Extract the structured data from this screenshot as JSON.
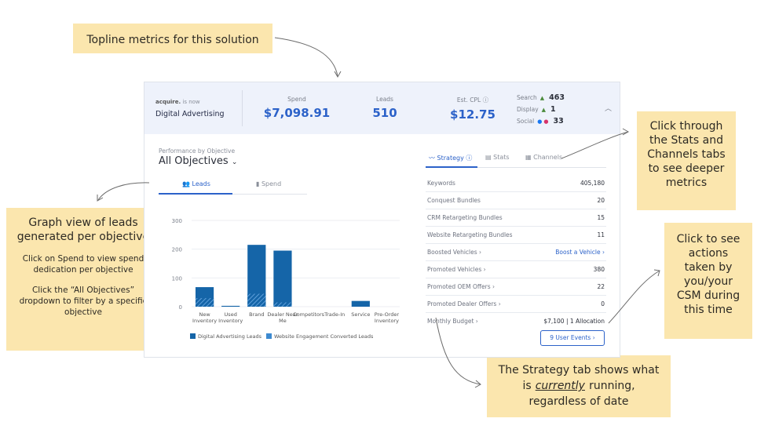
{
  "callouts": {
    "topline": "Topline metrics for this solution",
    "graph_title": "Graph view of leads generated per objective",
    "graph_spend": "Click on Spend to view spend dedication per objective",
    "graph_filter": "Click the “All Objectives” dropdown to filter by a specific objective",
    "tabs_tip": "Click through the Stats and Channels tabs to see deeper metrics",
    "actions_tip": "Click to see actions taken by you/your CSM during this time",
    "strategy_tip_1": "The Strategy tab shows what is",
    "strategy_tip_em": "currently",
    "strategy_tip_2": "running, regardless of date"
  },
  "header": {
    "brand_small": "acquire.",
    "brand_is_now": "is now",
    "brand_name": "Digital Advertising",
    "metrics": [
      {
        "label": "Spend",
        "value": "$7,098.91"
      },
      {
        "label": "Leads",
        "value": "510"
      },
      {
        "label": "Est. CPL",
        "value": "$12.75"
      }
    ],
    "channels": [
      {
        "label": "Search",
        "value": "463"
      },
      {
        "label": "Display",
        "value": "1"
      },
      {
        "label": "Social",
        "value": "33"
      }
    ]
  },
  "performance": {
    "label": "Performance by Objective",
    "selector": "All Objectives"
  },
  "chart_tabs": [
    {
      "label": "Leads"
    },
    {
      "label": "Spend"
    }
  ],
  "right_tabs": [
    {
      "label": "Strategy"
    },
    {
      "label": "Stats"
    },
    {
      "label": "Channels"
    }
  ],
  "strategy_rows": [
    {
      "label": "Keywords",
      "value": "405,180"
    },
    {
      "label": "Conquest Bundles",
      "value": "20"
    },
    {
      "label": "CRM Retargeting Bundles",
      "value": "15"
    },
    {
      "label": "Website Retargeting Bundles",
      "value": "11"
    },
    {
      "label": "Boosted Vehicles ›",
      "value": "Boost a Vehicle ›"
    },
    {
      "label": "Promoted Vehicles ›",
      "value": "380"
    },
    {
      "label": "Promoted OEM Offers ›",
      "value": "22"
    },
    {
      "label": "Promoted Dealer Offers ›",
      "value": "0"
    },
    {
      "label": "Monthly Budget ›",
      "value": "$7,100 | 1 Allocation"
    }
  ],
  "events_button": "9 User Events ›",
  "colors": {
    "accent": "#2c62c9",
    "series1": "#1565a8",
    "series2": "#3d8ad0",
    "note_bg": "#fbe6ae"
  },
  "chart_data": {
    "type": "bar",
    "categories": [
      "New Inventory",
      "Used Inventory",
      "Brand",
      "Dealer Near Me",
      "Competitors",
      "Trade-In",
      "Service",
      "Pre-Order Inventory"
    ],
    "series": [
      {
        "name": "Digital Advertising Leads",
        "values": [
          68,
          3,
          215,
          195,
          0,
          0,
          20,
          0
        ]
      },
      {
        "name": "Website Engagement Converted Leads",
        "values": [
          30,
          0,
          45,
          15,
          0,
          0,
          0,
          0
        ]
      }
    ],
    "yticks": [
      0,
      100,
      200,
      300
    ],
    "ylim": [
      0,
      300
    ],
    "legend": "bottom"
  }
}
